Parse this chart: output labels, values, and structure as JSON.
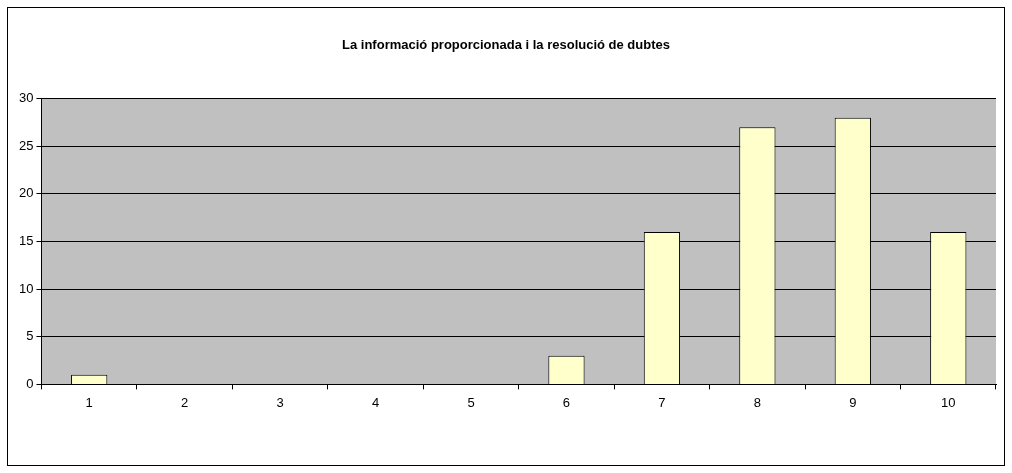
{
  "chart_data": {
    "type": "bar",
    "title": "La informació proporcionada i la resolució de dubtes",
    "categories": [
      "1",
      "2",
      "3",
      "4",
      "5",
      "6",
      "7",
      "8",
      "9",
      "10"
    ],
    "values": [
      1,
      0,
      0,
      0,
      0,
      3,
      16,
      27,
      28,
      16
    ],
    "color": "#ffffcc",
    "ylim": [
      0,
      30
    ],
    "yticks": [
      0,
      5,
      10,
      15,
      20,
      25,
      30
    ],
    "grid": "y",
    "legend": false
  }
}
